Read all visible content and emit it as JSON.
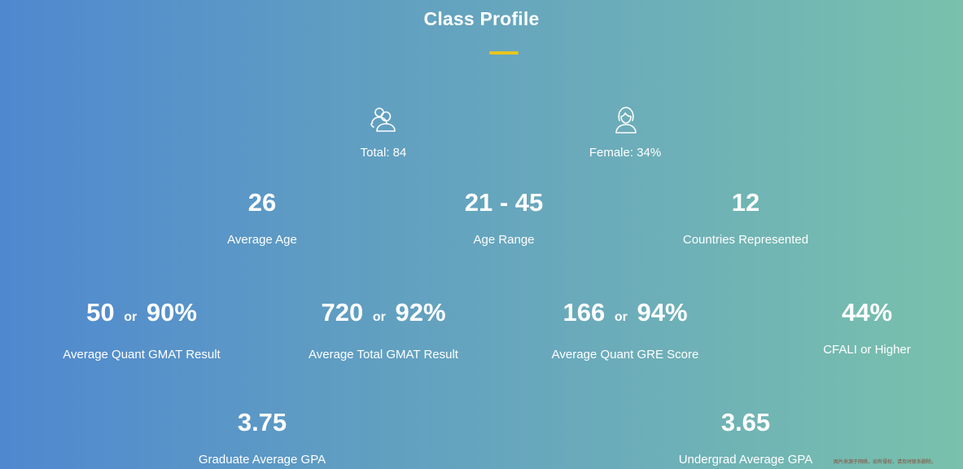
{
  "header": {
    "title": "Class Profile",
    "accent_color": "#e8c51f"
  },
  "summary": {
    "total": {
      "icon": "group-people-icon",
      "label": "Total: 84"
    },
    "female": {
      "icon": "female-person-icon",
      "label": "Female: 34%"
    }
  },
  "stats_row1": [
    {
      "value": "26",
      "label": "Average Age"
    },
    {
      "value": "21 - 45",
      "label": "Age Range"
    },
    {
      "value": "12",
      "label": "Countries Represented"
    }
  ],
  "stats_row2": [
    {
      "value_a": "50",
      "or": "or",
      "value_b": "90%",
      "label": "Average Quant GMAT Result"
    },
    {
      "value_a": "720",
      "or": "or",
      "value_b": "92%",
      "label": "Average Total GMAT Result"
    },
    {
      "value_a": "166",
      "or": "or",
      "value_b": "94%",
      "label": "Average Quant GRE Score"
    },
    {
      "value": "44%",
      "label": "CFALI or Higher"
    }
  ],
  "stats_row3": [
    {
      "value": "3.75",
      "label": "Graduate Average GPA"
    },
    {
      "value": "3.65",
      "label": "Undergrad Average GPA"
    }
  ],
  "watermark": "图片来源于网络，如有侵权，请及时联系删除。",
  "background": {
    "start": "#5088d0",
    "end": "#79c1ac"
  }
}
